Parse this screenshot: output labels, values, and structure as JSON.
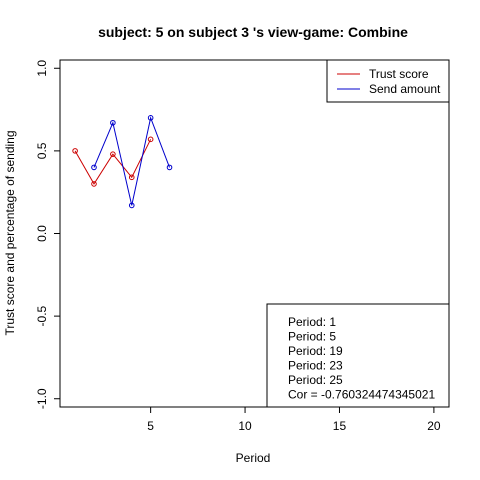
{
  "chart_data": {
    "type": "line",
    "title": "subject:  5  on subject  3 's view-game:  Combine",
    "xlabel": "Period",
    "ylabel": "Trust score and percentage of sending",
    "xlim": [
      0.2,
      20.8
    ],
    "ylim": [
      -1.05,
      1.05
    ],
    "x_ticks": [
      5,
      10,
      15,
      20
    ],
    "y_ticks": [
      -1.0,
      -0.5,
      0.0,
      0.5,
      1.0
    ],
    "x_tick_labels": [
      "5",
      "10",
      "15",
      "20"
    ],
    "y_tick_labels": [
      "-1.0",
      "-0.5",
      "0.0",
      "0.5",
      "1.0"
    ],
    "series": [
      {
        "name": "Trust score",
        "color": "#cc0000",
        "x": [
          1,
          2,
          3,
          4,
          5
        ],
        "values": [
          0.5,
          0.3,
          0.48,
          0.34,
          0.57
        ]
      },
      {
        "name": "Send amount",
        "color": "#0000cc",
        "x": [
          2,
          3,
          4,
          5,
          6
        ],
        "values": [
          0.4,
          0.67,
          0.17,
          0.7,
          0.4
        ]
      }
    ],
    "legend_position": "top-right",
    "annotation_position": "bottom-right",
    "annotation_lines": [
      "Period:  1",
      "Period:  5",
      "Period:  19",
      "Period:  23",
      "Period:  25",
      "Cor =  -0.760324474345021"
    ],
    "grid": false
  }
}
